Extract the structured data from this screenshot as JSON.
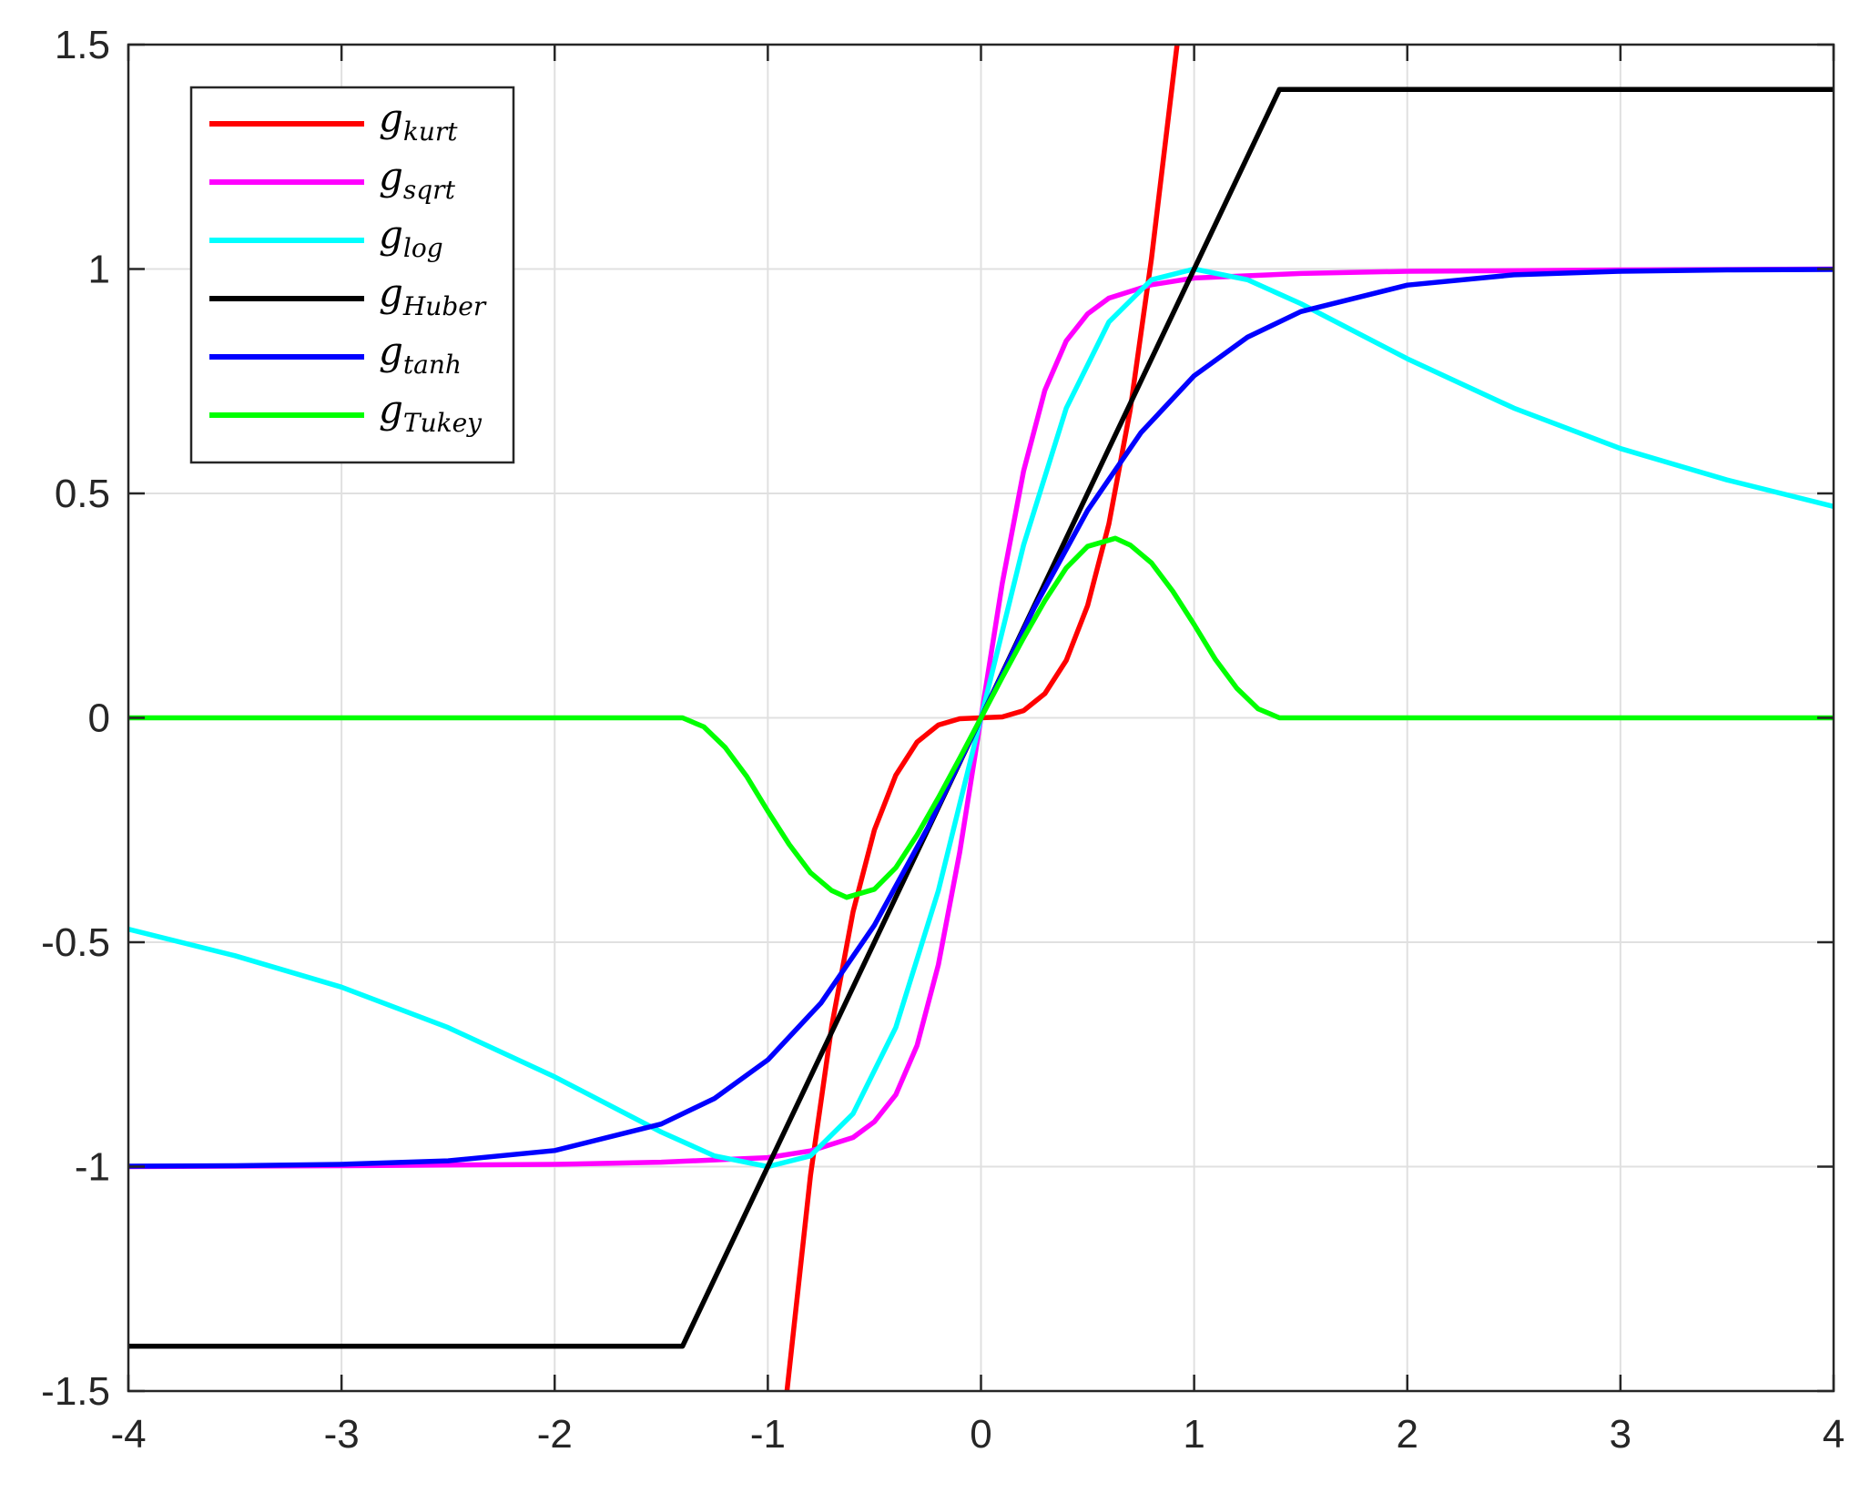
{
  "chart_data": {
    "type": "line",
    "title": "",
    "xlabel": "",
    "ylabel": "",
    "xlim": [
      -4,
      4
    ],
    "ylim": [
      -1.5,
      1.5
    ],
    "grid": true,
    "x_ticks": [
      -4,
      -3,
      -2,
      -1,
      0,
      1,
      2,
      3,
      4
    ],
    "x_tick_labels": [
      "-4",
      "-3",
      "-2",
      "-1",
      "0",
      "1",
      "2",
      "3",
      "4"
    ],
    "y_ticks": [
      -1.5,
      -1,
      -0.5,
      0,
      0.5,
      1,
      1.5
    ],
    "y_tick_labels": [
      "-1.5",
      "-1",
      "-0.5",
      "0",
      "0.5",
      "1",
      "1.5"
    ],
    "legend_position": "top-left",
    "series": [
      {
        "name": "g",
        "subscript": "kurt",
        "color": "#ff0000",
        "x": [
          -0.91,
          -0.8,
          -0.7,
          -0.6,
          -0.5,
          -0.4,
          -0.3,
          -0.2,
          -0.1,
          0,
          0.1,
          0.2,
          0.3,
          0.4,
          0.5,
          0.6,
          0.7,
          0.8,
          0.92
        ],
        "y": [
          -1.5,
          -1.02,
          -0.686,
          -0.432,
          -0.25,
          -0.128,
          -0.054,
          -0.016,
          -0.002,
          0,
          0.002,
          0.016,
          0.054,
          0.128,
          0.25,
          0.432,
          0.686,
          1.024,
          1.5
        ]
      },
      {
        "name": "g",
        "subscript": "sqrt",
        "color": "#ff00ff",
        "x": [
          -4,
          -3,
          -2,
          -1.5,
          -1,
          -0.8,
          -0.6,
          -0.5,
          -0.4,
          -0.3,
          -0.2,
          -0.1,
          0,
          0.1,
          0.2,
          0.3,
          0.4,
          0.5,
          0.6,
          0.8,
          1,
          1.5,
          2,
          3,
          4
        ],
        "y": [
          -1,
          -0.998,
          -0.995,
          -0.99,
          -0.98,
          -0.965,
          -0.935,
          -0.9,
          -0.84,
          -0.73,
          -0.55,
          -0.3,
          0,
          0.3,
          0.55,
          0.73,
          0.84,
          0.9,
          0.935,
          0.965,
          0.98,
          0.99,
          0.995,
          0.998,
          1
        ]
      },
      {
        "name": "g",
        "subscript": "log",
        "color": "#00ffff",
        "x": [
          -4,
          -3.5,
          -3,
          -2.5,
          -2,
          -1.5,
          -1.25,
          -1,
          -0.8,
          -0.6,
          -0.4,
          -0.2,
          0,
          0.2,
          0.4,
          0.6,
          0.8,
          1,
          1.25,
          1.5,
          2,
          2.5,
          3,
          3.5,
          4
        ],
        "y": [
          -0.471,
          -0.53,
          -0.6,
          -0.69,
          -0.8,
          -0.923,
          -0.976,
          -1,
          -0.976,
          -0.882,
          -0.69,
          -0.385,
          0,
          0.385,
          0.69,
          0.882,
          0.976,
          1,
          0.976,
          0.923,
          0.8,
          0.69,
          0.6,
          0.53,
          0.471
        ]
      },
      {
        "name": "g",
        "subscript": "Huber",
        "color": "#000000",
        "x": [
          -4,
          -1.4,
          1.4,
          4
        ],
        "y": [
          -1.4,
          -1.4,
          1.4,
          1.4
        ]
      },
      {
        "name": "g",
        "subscript": "tanh",
        "color": "#0000ff",
        "x": [
          -4,
          -3.5,
          -3,
          -2.5,
          -2,
          -1.5,
          -1.25,
          -1,
          -0.75,
          -0.5,
          -0.25,
          0,
          0.25,
          0.5,
          0.75,
          1,
          1.25,
          1.5,
          2,
          2.5,
          3,
          3.5,
          4
        ],
        "y": [
          -0.999,
          -0.998,
          -0.995,
          -0.987,
          -0.964,
          -0.905,
          -0.848,
          -0.762,
          -0.635,
          -0.462,
          -0.245,
          0,
          0.245,
          0.462,
          0.635,
          0.762,
          0.848,
          0.905,
          0.964,
          0.987,
          0.995,
          0.998,
          0.999
        ]
      },
      {
        "name": "g",
        "subscript": "Tukey",
        "color": "#00ff00",
        "x": [
          -4,
          -1.4,
          -1.3,
          -1.2,
          -1.1,
          -1,
          -0.9,
          -0.8,
          -0.7,
          -0.63,
          -0.5,
          -0.4,
          -0.3,
          -0.2,
          -0.1,
          0,
          0.1,
          0.2,
          0.3,
          0.4,
          0.5,
          0.63,
          0.7,
          0.8,
          0.9,
          1,
          1.1,
          1.2,
          1.3,
          1.4,
          4
        ],
        "y": [
          0,
          0,
          -0.02,
          -0.066,
          -0.13,
          -0.208,
          -0.282,
          -0.345,
          -0.385,
          -0.4,
          -0.382,
          -0.334,
          -0.261,
          -0.178,
          -0.09,
          0,
          0.09,
          0.178,
          0.261,
          0.334,
          0.382,
          0.4,
          0.385,
          0.345,
          0.282,
          0.208,
          0.13,
          0.066,
          0.02,
          0,
          0
        ]
      }
    ]
  }
}
